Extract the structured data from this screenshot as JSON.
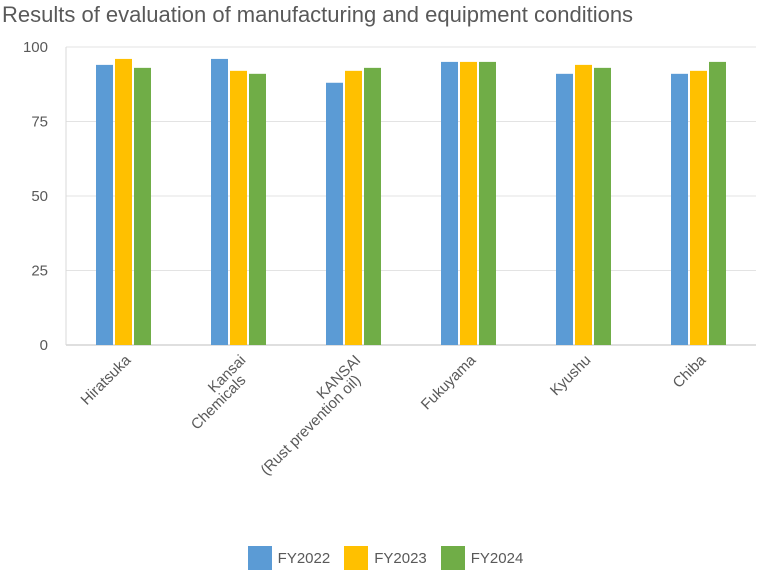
{
  "chart_data": {
    "type": "bar",
    "title": "Results of evaluation of manufacturing and equipment conditions",
    "categories": [
      [
        "Hiratsuka"
      ],
      [
        "Kansai",
        "Chemicals"
      ],
      [
        "KANSAI",
        "(Rust prevention oil)"
      ],
      [
        "Fukuyama"
      ],
      [
        "Kyushu"
      ],
      [
        "Chiba"
      ]
    ],
    "series": [
      {
        "name": "FY2022",
        "color": "#5b9bd5",
        "values": [
          94,
          96,
          88,
          95,
          91,
          91
        ]
      },
      {
        "name": "FY2023",
        "color": "#ffc000",
        "values": [
          96,
          92,
          92,
          95,
          94,
          92
        ]
      },
      {
        "name": "FY2024",
        "color": "#70ad47",
        "values": [
          93,
          91,
          93,
          95,
          93,
          95
        ]
      }
    ],
    "yticks": [
      "0",
      "25",
      "50",
      "75",
      "100"
    ],
    "ylim": [
      0,
      100
    ],
    "grid": true,
    "legend": "bottom",
    "xlabel": "",
    "ylabel": ""
  }
}
